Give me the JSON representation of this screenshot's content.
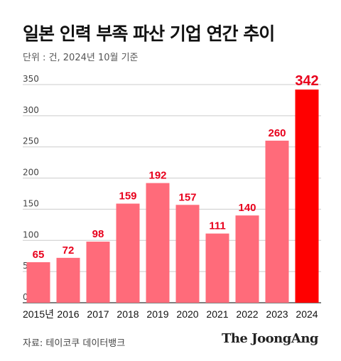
{
  "header": {
    "title": "일본 인력 부족 파산 기업 연간 추이",
    "unit_note": "단위 : 건, 2024년 10월 기준"
  },
  "footer": {
    "source": "자료: 테이코쿠 데이터뱅크",
    "logo": "The JoongAng"
  },
  "colors": {
    "bar": "#ff6b7a",
    "highlight_bar": "#ff0000",
    "label": "#e8001c",
    "grid": "#cccccc",
    "axis": "#333333"
  },
  "chart_data": {
    "type": "bar",
    "title": "일본 인력 부족 파산 기업 연간 추이",
    "subtitle": "단위 : 건, 2024년 10월 기준",
    "categories": [
      "2015년",
      "2016",
      "2017",
      "2018",
      "2019",
      "2020",
      "2021",
      "2022",
      "2023",
      "2024"
    ],
    "values": [
      65,
      72,
      98,
      159,
      192,
      157,
      111,
      140,
      260,
      342
    ],
    "highlight_index": 9,
    "ylim": [
      0,
      350
    ],
    "yticks": [
      0,
      50,
      100,
      150,
      200,
      250,
      300,
      350
    ],
    "grid": true,
    "data_labels": true
  }
}
